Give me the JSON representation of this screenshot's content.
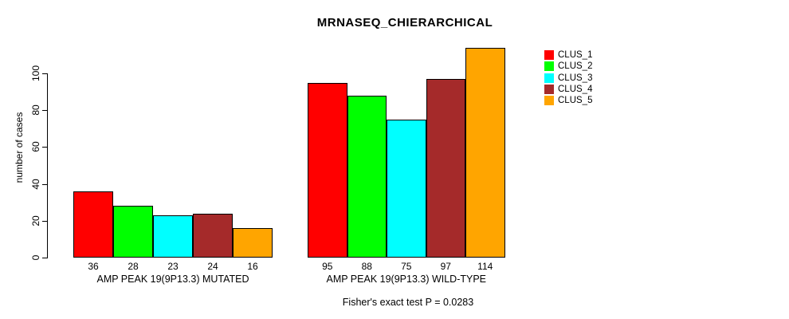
{
  "chart_data": {
    "type": "bar",
    "title": "MRNASEQ_CHIERARCHICAL",
    "ylabel": "number of cases",
    "xlabel": "",
    "footnote": "Fisher's exact test P = 0.0283",
    "yticks": [
      0,
      20,
      40,
      60,
      80,
      100
    ],
    "ylim": [
      0,
      116
    ],
    "grid": false,
    "legend_position": "right",
    "series": [
      {
        "name": "CLUS_1",
        "color": "#FF0000"
      },
      {
        "name": "CLUS_2",
        "color": "#00FF00"
      },
      {
        "name": "CLUS_3",
        "color": "#00FFFF"
      },
      {
        "name": "CLUS_4",
        "color": "#A52A2A"
      },
      {
        "name": "CLUS_5",
        "color": "#FFA500"
      }
    ],
    "groups": [
      {
        "label": "AMP PEAK 19(9P13.3) MUTATED",
        "values": [
          36,
          28,
          23,
          24,
          16
        ]
      },
      {
        "label": "AMP PEAK 19(9P13.3) WILD-TYPE",
        "values": [
          95,
          88,
          75,
          97,
          114
        ]
      }
    ],
    "bar_border_color": "#000000",
    "text_color": "#000000",
    "background_color": "#FFFFFF"
  }
}
